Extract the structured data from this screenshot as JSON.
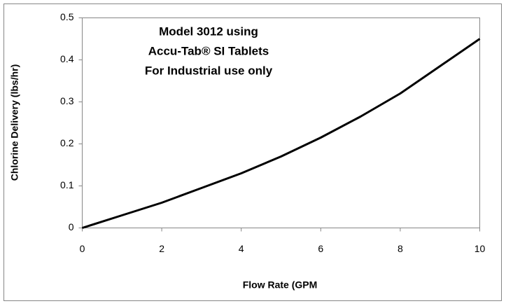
{
  "chart_data": {
    "type": "line",
    "x_label": "Flow Rate (GPM",
    "y_label": "Chlorine Delivery (lbs/hr)",
    "annotations": [
      "Model 3012 using",
      "Accu-Tab® SI Tablets",
      "For Industrial use only"
    ],
    "x": [
      0,
      1,
      2,
      3,
      4,
      5,
      6,
      7,
      8,
      9,
      10
    ],
    "values": [
      0,
      0.03,
      0.06,
      0.095,
      0.13,
      0.17,
      0.215,
      0.265,
      0.32,
      0.385,
      0.45
    ],
    "color": "#000000",
    "xlim": [
      0,
      10
    ],
    "xticks": [
      0,
      2,
      4,
      6,
      8,
      10
    ],
    "ylim": [
      0,
      0.5
    ],
    "yticks": [
      0,
      0.1,
      0.2,
      0.3,
      0.4,
      0.5
    ],
    "grid": false
  }
}
